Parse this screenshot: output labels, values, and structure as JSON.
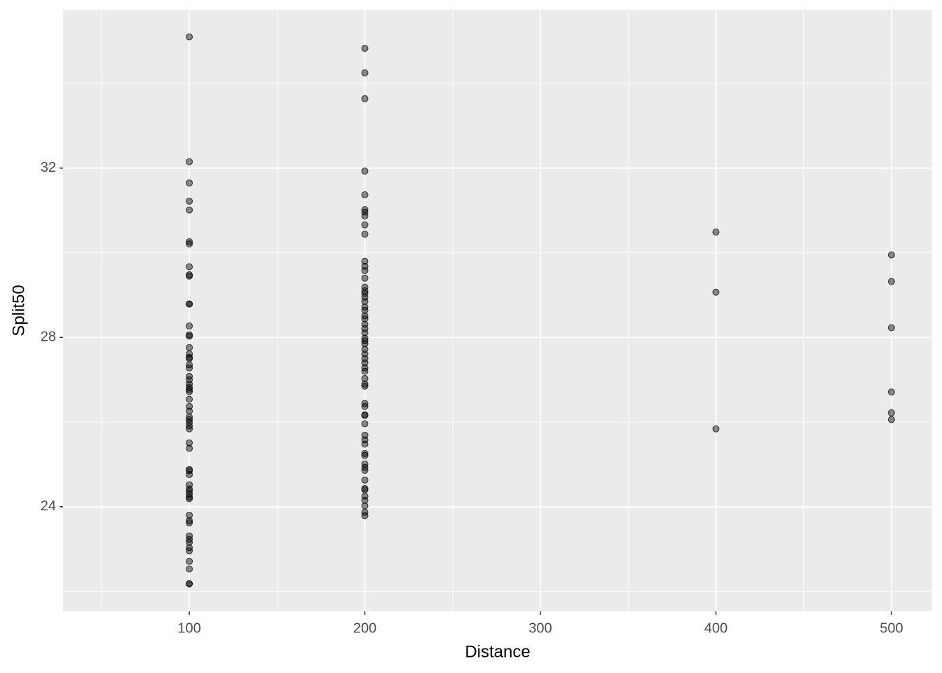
{
  "chart_data": {
    "type": "scatter",
    "x_label": "Distance",
    "y_label": "Split50",
    "x": [
      100,
      100,
      100,
      100,
      100,
      100,
      100,
      100,
      100,
      100,
      100,
      100,
      100,
      100,
      100,
      100,
      100,
      100,
      100,
      100,
      100,
      100,
      100,
      100,
      100,
      100,
      100,
      100,
      100,
      100,
      100,
      100,
      100,
      100,
      100,
      100,
      100,
      100,
      100,
      100,
      100,
      100,
      100,
      100,
      100,
      100,
      100,
      100,
      100,
      100,
      100,
      100,
      100,
      100,
      100,
      100,
      100,
      100,
      200,
      200,
      200,
      200,
      200,
      200,
      200,
      200,
      200,
      200,
      200,
      200,
      200,
      200,
      200,
      200,
      200,
      200,
      200,
      200,
      200,
      200,
      200,
      200,
      200,
      200,
      200,
      200,
      200,
      200,
      200,
      200,
      200,
      200,
      200,
      200,
      200,
      200,
      200,
      200,
      200,
      200,
      200,
      200,
      200,
      200,
      200,
      200,
      200,
      200,
      200,
      200,
      200,
      200,
      200,
      200,
      200,
      200,
      200,
      400,
      400,
      400,
      500,
      500,
      500,
      500,
      500,
      500
    ],
    "y": [
      35.1,
      32.15,
      31.65,
      31.22,
      31.01,
      30.26,
      30.21,
      29.67,
      29.48,
      29.45,
      28.79,
      28.79,
      28.27,
      28.06,
      28.03,
      27.76,
      27.61,
      27.53,
      27.5,
      27.35,
      27.28,
      27.08,
      27.0,
      26.9,
      26.82,
      26.77,
      26.72,
      26.54,
      26.37,
      26.26,
      26.12,
      26.06,
      25.99,
      25.91,
      25.84,
      25.51,
      25.38,
      24.88,
      24.85,
      24.76,
      24.52,
      24.42,
      24.37,
      24.3,
      24.23,
      24.19,
      23.8,
      23.67,
      23.62,
      23.31,
      23.23,
      23.16,
      23.03,
      22.96,
      22.71,
      22.53,
      22.18,
      22.18,
      34.83,
      34.25,
      33.64,
      31.93,
      31.37,
      31.02,
      30.96,
      30.87,
      30.66,
      30.44,
      29.8,
      29.68,
      29.58,
      29.4,
      29.19,
      29.1,
      29.04,
      28.95,
      28.85,
      28.72,
      28.64,
      28.51,
      28.44,
      28.31,
      28.21,
      28.11,
      27.98,
      27.92,
      27.85,
      27.72,
      27.61,
      27.5,
      27.4,
      27.28,
      27.2,
      27.03,
      26.9,
      26.85,
      26.44,
      26.37,
      26.17,
      26.16,
      25.96,
      25.69,
      25.58,
      25.48,
      25.26,
      25.21,
      25.01,
      24.93,
      24.86,
      24.63,
      24.43,
      24.4,
      24.25,
      24.15,
      24.02,
      23.87,
      23.79,
      30.49,
      29.07,
      25.84,
      29.95,
      29.32,
      28.23,
      26.71,
      26.22,
      26.06
    ],
    "color": "#000000",
    "alpha": 0.45,
    "xlim": [
      28.1,
      523.2
    ],
    "xticks": [
      100,
      200,
      300,
      400,
      500
    ],
    "minor_xticks": [
      50,
      150,
      250,
      350,
      450
    ],
    "ylim": [
      21.53,
      35.74
    ],
    "yticks": [
      24,
      28,
      32
    ],
    "minor_yticks": [
      22,
      26,
      30,
      34
    ],
    "grid": true
  }
}
